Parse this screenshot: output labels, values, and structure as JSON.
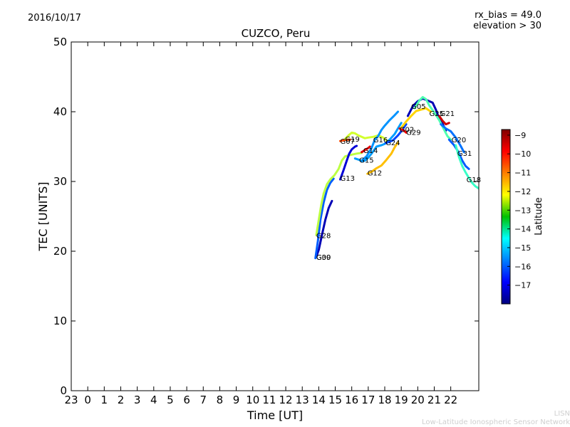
{
  "header": {
    "date": "2016/10/17",
    "rx_bias": "rx_bias = 49.0",
    "elevation": "elevation > 30"
  },
  "watermark": {
    "short": "LISN",
    "long": "Low-Latitude Ionospheric Sensor Network"
  },
  "chart_data": {
    "type": "scatter",
    "title": "CUZCO, Peru",
    "xlabel": "Time [UT]",
    "ylabel": "TEC [UNITS]",
    "ylim": [
      0,
      50
    ],
    "yticks": [
      0,
      10,
      20,
      30,
      40,
      50
    ],
    "xlim": [
      -1,
      23.7
    ],
    "xticks": [
      -1,
      0,
      1,
      2,
      3,
      4,
      5,
      6,
      7,
      8,
      9,
      10,
      11,
      12,
      13,
      14,
      15,
      16,
      17,
      18,
      19,
      20,
      21,
      22
    ],
    "xtick_labels": [
      "23",
      "0",
      "1",
      "2",
      "3",
      "4",
      "5",
      "6",
      "7",
      "8",
      "9",
      "10",
      "11",
      "12",
      "13",
      "14",
      "15",
      "16",
      "17",
      "18",
      "19",
      "20",
      "21",
      "22"
    ],
    "colorbar": {
      "label": "Latitude",
      "range": [
        -18,
        -8.7
      ],
      "ticks": [
        -9,
        -10,
        -11,
        -12,
        -13,
        -14,
        -15,
        -16,
        -17
      ]
    },
    "satellites": [
      {
        "name": "G30",
        "lat": -17.5,
        "label": [
          13.85,
          19.2
        ],
        "points": [
          [
            13.85,
            19.2
          ],
          [
            14.0,
            20.2
          ],
          [
            14.2,
            22.4
          ],
          [
            14.4,
            24.5
          ],
          [
            14.6,
            26.2
          ],
          [
            14.8,
            27.2
          ]
        ]
      },
      {
        "name": "G09",
        "lat": -16.0,
        "label": [
          13.85,
          19.2
        ],
        "points": [
          [
            13.8,
            19.0
          ],
          [
            13.95,
            21.5
          ],
          [
            14.1,
            24.5
          ],
          [
            14.3,
            27.0
          ],
          [
            14.5,
            28.8
          ],
          [
            14.7,
            29.8
          ],
          [
            14.9,
            30.4
          ]
        ]
      },
      {
        "name": "G28",
        "lat": -12.8,
        "label": [
          13.85,
          22.3
        ],
        "points": [
          [
            13.85,
            22.3
          ],
          [
            14.0,
            24.5
          ],
          [
            14.15,
            26.6
          ],
          [
            14.3,
            28.3
          ],
          [
            14.5,
            29.6
          ],
          [
            14.7,
            30.3
          ],
          [
            14.95,
            30.9
          ],
          [
            15.2,
            31.8
          ],
          [
            15.4,
            33.0
          ],
          [
            15.6,
            33.6
          ],
          [
            15.9,
            33.8
          ],
          [
            16.3,
            34.0
          ],
          [
            16.6,
            34.1
          ]
        ]
      },
      {
        "name": "G13",
        "lat": -17.2,
        "label": [
          15.3,
          30.5
        ],
        "points": [
          [
            15.3,
            30.3
          ],
          [
            15.5,
            31.6
          ],
          [
            15.7,
            33.0
          ],
          [
            15.85,
            34.0
          ],
          [
            16.0,
            34.6
          ],
          [
            16.2,
            35.0
          ],
          [
            16.3,
            35.1
          ]
        ]
      },
      {
        "name": "G07",
        "lat": -10.5,
        "label": [
          15.3,
          35.8
        ],
        "points": [
          [
            15.3,
            35.8
          ],
          [
            15.5,
            35.9
          ],
          [
            15.7,
            36.0
          ],
          [
            15.9,
            36.0
          ]
        ]
      },
      {
        "name": "G19",
        "lat": -12.6,
        "label": [
          15.6,
          36.1
        ],
        "points": [
          [
            15.6,
            36.1
          ],
          [
            15.8,
            36.6
          ],
          [
            16.0,
            37.0
          ],
          [
            16.2,
            36.9
          ],
          [
            16.4,
            36.6
          ],
          [
            16.6,
            36.4
          ],
          [
            16.8,
            36.2
          ],
          [
            17.0,
            36.3
          ],
          [
            17.3,
            36.4
          ],
          [
            17.6,
            36.6
          ],
          [
            17.9,
            36.3
          ],
          [
            18.1,
            35.9
          ]
        ]
      },
      {
        "name": "G15",
        "lat": -15.4,
        "label": [
          16.45,
          33.1
        ],
        "points": [
          [
            16.2,
            33.3
          ],
          [
            16.45,
            33.1
          ],
          [
            16.6,
            32.9
          ],
          [
            16.8,
            33.0
          ],
          [
            17.0,
            33.4
          ],
          [
            17.2,
            34.0
          ],
          [
            17.5,
            35.0
          ],
          [
            17.8,
            35.2
          ],
          [
            18.0,
            35.4
          ],
          [
            18.3,
            36.0
          ],
          [
            18.6,
            36.8
          ],
          [
            18.8,
            37.6
          ],
          [
            19.0,
            38.4
          ]
        ]
      },
      {
        "name": "G16",
        "lat": -15.5,
        "label": [
          17.3,
          36.0
        ],
        "points": [
          [
            16.6,
            33.0
          ],
          [
            16.9,
            33.6
          ],
          [
            17.2,
            34.8
          ],
          [
            17.4,
            36.0
          ],
          [
            17.6,
            36.5
          ],
          [
            17.8,
            37.4
          ],
          [
            18.0,
            38.0
          ],
          [
            18.3,
            38.8
          ],
          [
            18.6,
            39.5
          ],
          [
            18.8,
            40.0
          ]
        ]
      },
      {
        "name": "G12",
        "lat": -11.6,
        "label": [
          16.95,
          31.3
        ],
        "points": [
          [
            16.95,
            31.1
          ],
          [
            17.2,
            31.4
          ],
          [
            17.5,
            31.9
          ],
          [
            17.8,
            32.3
          ],
          [
            18.1,
            33.1
          ],
          [
            18.4,
            34.0
          ],
          [
            18.6,
            34.9
          ],
          [
            18.8,
            35.6
          ]
        ]
      },
      {
        "name": "G24",
        "lat": -16.2,
        "label": [
          18.05,
          35.6
        ],
        "points": [
          [
            18.05,
            35.5
          ],
          [
            18.3,
            35.7
          ],
          [
            18.5,
            35.9
          ],
          [
            18.8,
            36.6
          ],
          [
            19.0,
            37.2
          ],
          [
            19.3,
            38.2
          ]
        ]
      },
      {
        "name": "G14",
        "lat": -9.6,
        "label": [
          16.7,
          34.5
        ],
        "points": [
          [
            16.6,
            34.2
          ],
          [
            16.8,
            34.5
          ],
          [
            17.0,
            34.8
          ],
          [
            17.1,
            35.0
          ]
        ]
      },
      {
        "name": "G02",
        "lat": -9.8,
        "label": [
          18.9,
          37.5
        ],
        "points": [
          [
            18.9,
            37.6
          ],
          [
            19.1,
            37.4
          ],
          [
            19.3,
            37.0
          ]
        ]
      },
      {
        "name": "G29",
        "lat": -11.8,
        "label": [
          19.3,
          37.1
        ],
        "points": [
          [
            19.0,
            37.7
          ],
          [
            19.3,
            38.6
          ],
          [
            19.6,
            39.4
          ],
          [
            19.9,
            40.1
          ],
          [
            20.2,
            40.3
          ],
          [
            20.5,
            40.5
          ],
          [
            20.8,
            40.0
          ]
        ]
      },
      {
        "name": "G05",
        "lat": -17.5,
        "label": [
          19.6,
          40.8
        ],
        "points": [
          [
            19.4,
            39.4
          ],
          [
            19.7,
            40.8
          ],
          [
            20.0,
            41.5
          ],
          [
            20.3,
            41.9
          ],
          [
            20.6,
            41.6
          ],
          [
            20.9,
            41.3
          ],
          [
            21.1,
            40.3
          ],
          [
            21.3,
            39.0
          ],
          [
            21.5,
            38.3
          ],
          [
            21.7,
            37.3
          ]
        ]
      },
      {
        "name": "G25",
        "lat": -13.8,
        "label": [
          20.7,
          39.8
        ],
        "points": [
          [
            19.8,
            40.5
          ],
          [
            20.1,
            41.6
          ],
          [
            20.3,
            42.1
          ],
          [
            20.5,
            41.8
          ],
          [
            20.7,
            40.9
          ],
          [
            21.0,
            39.9
          ],
          [
            21.3,
            38.8
          ],
          [
            21.6,
            37.4
          ],
          [
            21.8,
            36.5
          ],
          [
            22.0,
            36.0
          ]
        ]
      },
      {
        "name": "G21",
        "lat": -9.4,
        "label": [
          21.35,
          39.8
        ],
        "points": [
          [
            21.3,
            39.4
          ],
          [
            21.5,
            38.7
          ],
          [
            21.7,
            38.2
          ],
          [
            21.9,
            38.4
          ]
        ]
      },
      {
        "name": "G20",
        "lat": -15.8,
        "label": [
          22.05,
          36.0
        ],
        "points": [
          [
            21.4,
            38.2
          ],
          [
            21.7,
            37.6
          ],
          [
            22.0,
            37.2
          ],
          [
            22.3,
            36.3
          ],
          [
            22.6,
            35.1
          ],
          [
            22.8,
            34.2
          ]
        ]
      },
      {
        "name": "G31",
        "lat": -16.0,
        "label": [
          22.4,
          34.1
        ],
        "points": [
          [
            21.9,
            36.0
          ],
          [
            22.2,
            35.2
          ],
          [
            22.45,
            34.3
          ],
          [
            22.7,
            33.0
          ],
          [
            22.9,
            32.2
          ],
          [
            23.1,
            31.8
          ]
        ]
      },
      {
        "name": "G18",
        "lat": -14.0,
        "label": [
          22.95,
          30.3
        ],
        "points": [
          [
            22.3,
            35.2
          ],
          [
            22.5,
            33.5
          ],
          [
            22.7,
            32.2
          ],
          [
            22.9,
            31.3
          ],
          [
            23.1,
            30.5
          ],
          [
            23.3,
            29.8
          ],
          [
            23.5,
            29.3
          ],
          [
            23.7,
            29.0
          ]
        ]
      }
    ]
  }
}
